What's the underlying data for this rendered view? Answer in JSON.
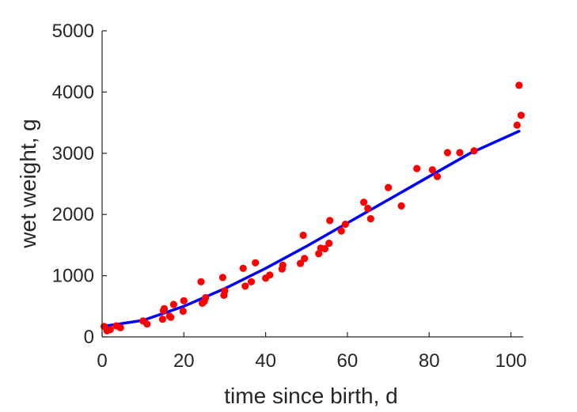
{
  "chart_data": {
    "type": "scatter",
    "title": "",
    "xlabel": "time since birth, d",
    "ylabel": "wet weight, g",
    "xlim": [
      0,
      103
    ],
    "ylim": [
      0,
      5000
    ],
    "x_ticks": [
      0,
      20,
      40,
      60,
      80,
      100
    ],
    "y_ticks": [
      0,
      1000,
      2000,
      3000,
      4000,
      5000
    ],
    "grid": false,
    "legend": "none",
    "colors": {
      "points": "#ff0000",
      "fit": "#0000ff",
      "axis": "#262626"
    },
    "series": [
      {
        "type": "scatter",
        "x": [
          0.5,
          1.2,
          2.0,
          3.5,
          4.5,
          10.0,
          11.0,
          14.8,
          15.0,
          15.2,
          16.5,
          16.8,
          17.5,
          19.8,
          20.0,
          24.2,
          24.5,
          25.0,
          25.3,
          29.5,
          29.8,
          30.0,
          34.5,
          35.0,
          36.5,
          37.5,
          40.0,
          41.0,
          44.0,
          44.2,
          48.5,
          49.2,
          49.5,
          53.0,
          53.5,
          54.5,
          55.5,
          55.7,
          58.5,
          59.5,
          64.0,
          65.0,
          65.7,
          70.0,
          73.2,
          77.0,
          80.8,
          82.0,
          84.5,
          87.5,
          91.0,
          101.5,
          102.0,
          102.5
        ],
        "y": [
          170,
          100,
          120,
          180,
          150,
          260,
          210,
          290,
          430,
          460,
          340,
          320,
          530,
          420,
          590,
          900,
          550,
          580,
          640,
          970,
          680,
          750,
          1120,
          830,
          900,
          1210,
          960,
          1010,
          1110,
          1170,
          1200,
          1660,
          1280,
          1360,
          1450,
          1440,
          1530,
          1900,
          1730,
          1840,
          2200,
          2100,
          1930,
          2440,
          2140,
          2750,
          2730,
          2620,
          3010,
          3010,
          3040,
          3460,
          4110,
          3620
        ]
      },
      {
        "type": "line",
        "x": [
          0,
          10,
          20,
          30,
          40,
          50,
          60,
          70,
          80,
          90,
          102
        ],
        "y": [
          170,
          270,
          500,
          790,
          1120,
          1480,
          1860,
          2240,
          2620,
          3000,
          3360
        ]
      }
    ]
  }
}
